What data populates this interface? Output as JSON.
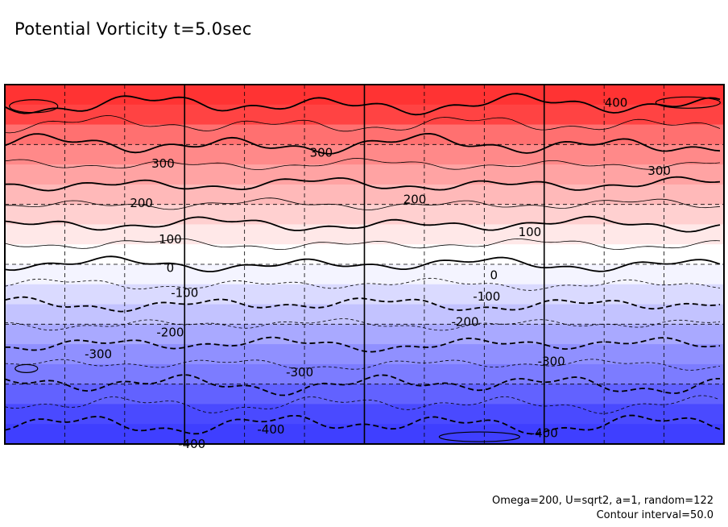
{
  "chart_data": {
    "type": "contour",
    "title": "Potential Vorticity t=5.0sec",
    "xlabel": "",
    "ylabel": "",
    "field": "Potential Vorticity",
    "time": "t=5.0sec",
    "contour_interval": 50.0,
    "value_range": [
      -450,
      450
    ],
    "positive_color": "#ff4040",
    "negative_color": "#4040ff",
    "zero_color": "#ffffff",
    "bands": [
      {
        "min": 400,
        "max": 450,
        "color": "#ff3333"
      },
      {
        "min": 350,
        "max": 400,
        "color": "#ff4343"
      },
      {
        "min": 300,
        "max": 350,
        "color": "#ff7070"
      },
      {
        "min": 250,
        "max": 300,
        "color": "#ff8989"
      },
      {
        "min": 200,
        "max": 250,
        "color": "#ffa3a3"
      },
      {
        "min": 150,
        "max": 200,
        "color": "#ffb9b9"
      },
      {
        "min": 100,
        "max": 150,
        "color": "#ffd0d0"
      },
      {
        "min": 50,
        "max": 100,
        "color": "#ffe8e8"
      },
      {
        "min": 0,
        "max": 50,
        "color": "#ffffff"
      },
      {
        "min": -50,
        "max": 0,
        "color": "#f4f4ff"
      },
      {
        "min": -100,
        "max": -50,
        "color": "#dadaff"
      },
      {
        "min": -150,
        "max": -100,
        "color": "#c3c3ff"
      },
      {
        "min": -200,
        "max": -150,
        "color": "#a9a9ff"
      },
      {
        "min": -250,
        "max": -200,
        "color": "#9090ff"
      },
      {
        "min": -300,
        "max": -250,
        "color": "#7c7cff"
      },
      {
        "min": -350,
        "max": -300,
        "color": "#6262ff"
      },
      {
        "min": -400,
        "max": -350,
        "color": "#4a4aff"
      },
      {
        "min": -450,
        "max": -400,
        "color": "#3f3fff"
      }
    ],
    "contours": [
      {
        "value": 400,
        "style": "solid-thick",
        "y": 0.95
      },
      {
        "value": 350,
        "style": "solid-thin",
        "y": 0.85
      },
      {
        "value": 300,
        "style": "solid-thick",
        "y": 0.75
      },
      {
        "value": 250,
        "style": "solid-thin",
        "y": 0.68
      },
      {
        "value": 200,
        "style": "solid-thick",
        "y": 0.6
      },
      {
        "value": 150,
        "style": "solid-thin",
        "y": 0.53
      },
      {
        "value": 100,
        "style": "solid-thick",
        "y": 0.44
      },
      {
        "value": 50,
        "style": "solid-thin",
        "y": 0.37
      },
      {
        "value": 0,
        "style": "solid-thick",
        "y": 0.5
      },
      {
        "value": -50,
        "style": "dashed-thin",
        "y": 0.47
      },
      {
        "value": -100,
        "style": "dashed-thick",
        "y": 0.41
      },
      {
        "value": -150,
        "style": "dashed-thin",
        "y": 0.34
      },
      {
        "value": -200,
        "style": "dashed-thick",
        "y": 0.27
      },
      {
        "value": -250,
        "style": "dashed-thin",
        "y": 0.21
      },
      {
        "value": -300,
        "style": "dashed-thick",
        "y": 0.15
      },
      {
        "value": -350,
        "style": "dashed-thin",
        "y": 0.09
      },
      {
        "value": -400,
        "style": "dashed-thick",
        "y": 0.03
      }
    ],
    "contour_labels": [
      {
        "text": "400",
        "x": 0.85,
        "y": 0.95
      },
      {
        "text": "300",
        "x": 0.44,
        "y": 0.81
      },
      {
        "text": "300",
        "x": 0.22,
        "y": 0.78
      },
      {
        "text": "300",
        "x": 0.91,
        "y": 0.76
      },
      {
        "text": "200",
        "x": 0.57,
        "y": 0.68
      },
      {
        "text": "200",
        "x": 0.19,
        "y": 0.67
      },
      {
        "text": "100",
        "x": 0.73,
        "y": 0.59
      },
      {
        "text": "100",
        "x": 0.23,
        "y": 0.57
      },
      {
        "text": "0",
        "x": 0.23,
        "y": 0.49
      },
      {
        "text": "0",
        "x": 0.68,
        "y": 0.47
      },
      {
        "text": "-100",
        "x": 0.25,
        "y": 0.42
      },
      {
        "text": "-100",
        "x": 0.67,
        "y": 0.41
      },
      {
        "text": "-200",
        "x": 0.23,
        "y": 0.31
      },
      {
        "text": "-200",
        "x": 0.64,
        "y": 0.34
      },
      {
        "text": "-300",
        "x": 0.13,
        "y": 0.25
      },
      {
        "text": "-300",
        "x": 0.41,
        "y": 0.2
      },
      {
        "text": "-300",
        "x": 0.76,
        "y": 0.23
      },
      {
        "text": "-400",
        "x": 0.37,
        "y": 0.04
      },
      {
        "text": "-400",
        "x": 0.75,
        "y": 0.03
      },
      {
        "text": "-400",
        "x": 0.26,
        "y": 0.0
      }
    ],
    "grid": {
      "minor_dashed": true,
      "major_solid_x": [
        0.25,
        0.5,
        0.75
      ]
    }
  },
  "annotations": {
    "params": "Omega=200, U=sqrt2, a=1, random=122",
    "interval": "Contour interval=50.0"
  }
}
